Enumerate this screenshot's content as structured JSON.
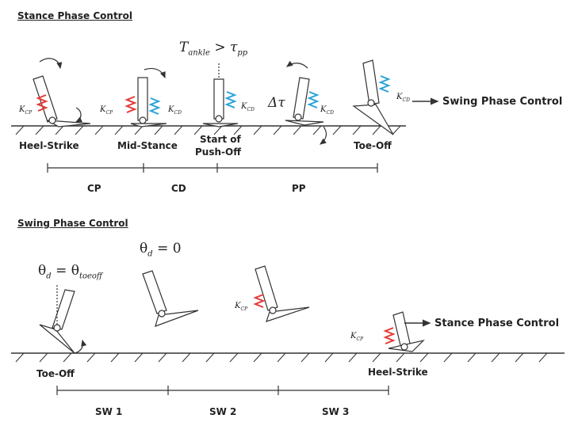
{
  "stance": {
    "title": "Stance Phase Control",
    "events": [
      "Heel-Strike",
      "Mid-Stance",
      "Start of",
      "Push-Off",
      "Toe-Off"
    ],
    "phases": [
      "CP",
      "CD",
      "PP"
    ],
    "condition": {
      "main": "T",
      "sub": "ankle",
      "rel": "> τ",
      "sub2": "pp"
    },
    "delta": "Δτ",
    "next": "Swing Phase Control"
  },
  "swing": {
    "title": "Swing Phase Control",
    "events": [
      "Toe-Off",
      "Heel-Strike"
    ],
    "phases": [
      "SW 1",
      "SW 2",
      "SW 3"
    ],
    "cond1": {
      "main": "θ",
      "sub": "d",
      "rel": "= θ",
      "sub2": "toeoff"
    },
    "cond2": {
      "main": "θ",
      "sub": "d",
      "rel": "= 0"
    },
    "next": "Stance Phase Control"
  },
  "springs": {
    "kcp": {
      "main": "K",
      "sub": "CP"
    },
    "kcd": {
      "main": "K",
      "sub": "CD"
    },
    "colors": {
      "kcp": "#e53935",
      "kcd": "#29a3d9",
      "line": "#333333"
    }
  }
}
